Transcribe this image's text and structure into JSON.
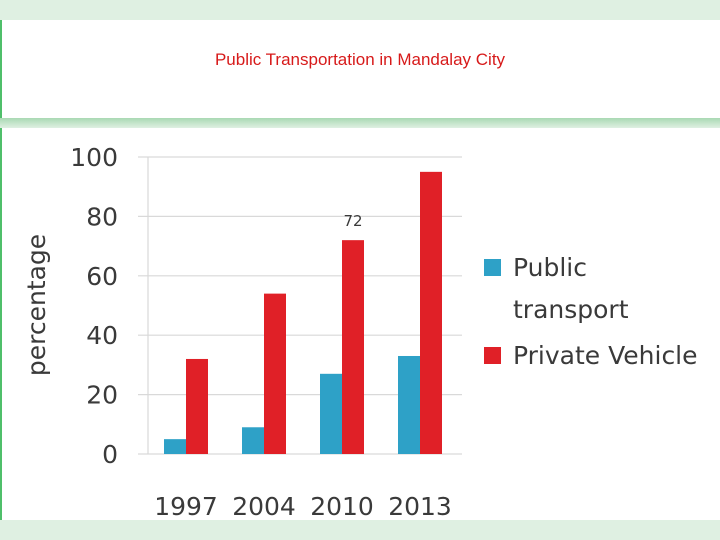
{
  "page": {
    "title": "Public Transportation in Mandalay City"
  },
  "colors": {
    "public_transport": "#2ea1c7",
    "private_vehicle": "#e02027",
    "title": "#d71a1a",
    "band": "#dff0e2",
    "border": "#4fbf6a"
  },
  "chart_data": {
    "type": "bar",
    "title": "Public Transportation in Mandalay City",
    "xlabel": "",
    "ylabel": "percentage",
    "ylim": [
      0,
      100
    ],
    "yticks": [
      0,
      20,
      40,
      60,
      80,
      100
    ],
    "grid": true,
    "legend_position": "right",
    "categories": [
      "1997",
      "2004",
      "2010",
      "2013"
    ],
    "series": [
      {
        "name": "Public transport",
        "color": "#2ea1c7",
        "values": [
          5,
          9,
          27,
          33
        ]
      },
      {
        "name": "Private Vehicle",
        "color": "#e02027",
        "values": [
          32,
          54,
          72,
          95
        ]
      }
    ],
    "legend_lines": [
      [
        "Public",
        "transport"
      ],
      [
        "Private Vehicle"
      ]
    ],
    "annotations": [
      {
        "category": "2010",
        "series": "Private Vehicle",
        "text": "72"
      }
    ]
  }
}
